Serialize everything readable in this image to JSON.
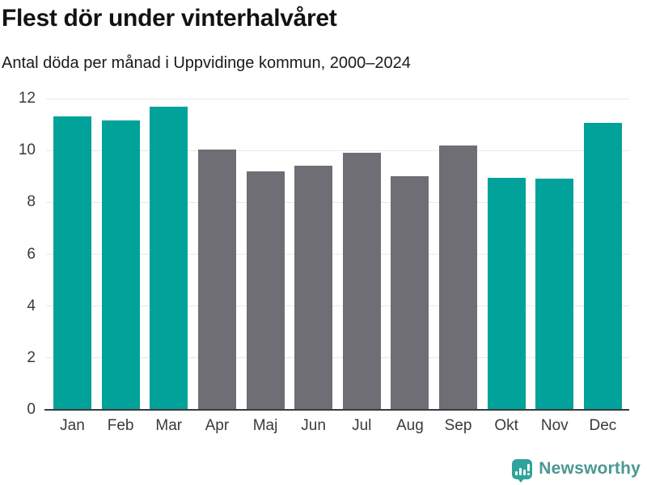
{
  "header": {
    "title": "Flest dör under vinterhalvåret",
    "subtitle": "Antal döda per månad i Uppvidinge kommun, 2000–2024"
  },
  "chart_data": {
    "type": "bar",
    "title": "Flest dör under vinterhalvåret",
    "subtitle": "Antal döda per månad i Uppvidinge kommun, 2000–2024",
    "categories": [
      "Jan",
      "Feb",
      "Mar",
      "Apr",
      "Maj",
      "Jun",
      "Jul",
      "Aug",
      "Sep",
      "Okt",
      "Nov",
      "Dec"
    ],
    "values": [
      11.3,
      11.15,
      11.7,
      10.05,
      9.2,
      9.4,
      9.9,
      9.0,
      10.2,
      8.95,
      8.9,
      11.05
    ],
    "bar_groups": [
      "winter",
      "winter",
      "winter",
      "summer",
      "summer",
      "summer",
      "summer",
      "summer",
      "summer",
      "winter",
      "winter",
      "winter"
    ],
    "colors": {
      "winter": "#00A29A",
      "summer": "#6F6E74"
    },
    "color_note": "teal bars = Okt–Mar (vinterhalvåret), gray bars = Apr–Sep",
    "xlabel": "",
    "ylabel": "",
    "yticks": [
      0,
      2,
      4,
      6,
      8,
      10,
      12
    ],
    "ylim": [
      0,
      12
    ],
    "grid": true,
    "legend": "none",
    "gridline_color": "#E8E8E8",
    "axis_line_color": "#3B3B3B"
  },
  "footer": {
    "brand": "Newsworthy",
    "brand_color": "#4B9792",
    "icon": "bar-chart-speech-bubble-icon",
    "icon_color": "#2EA49C"
  }
}
